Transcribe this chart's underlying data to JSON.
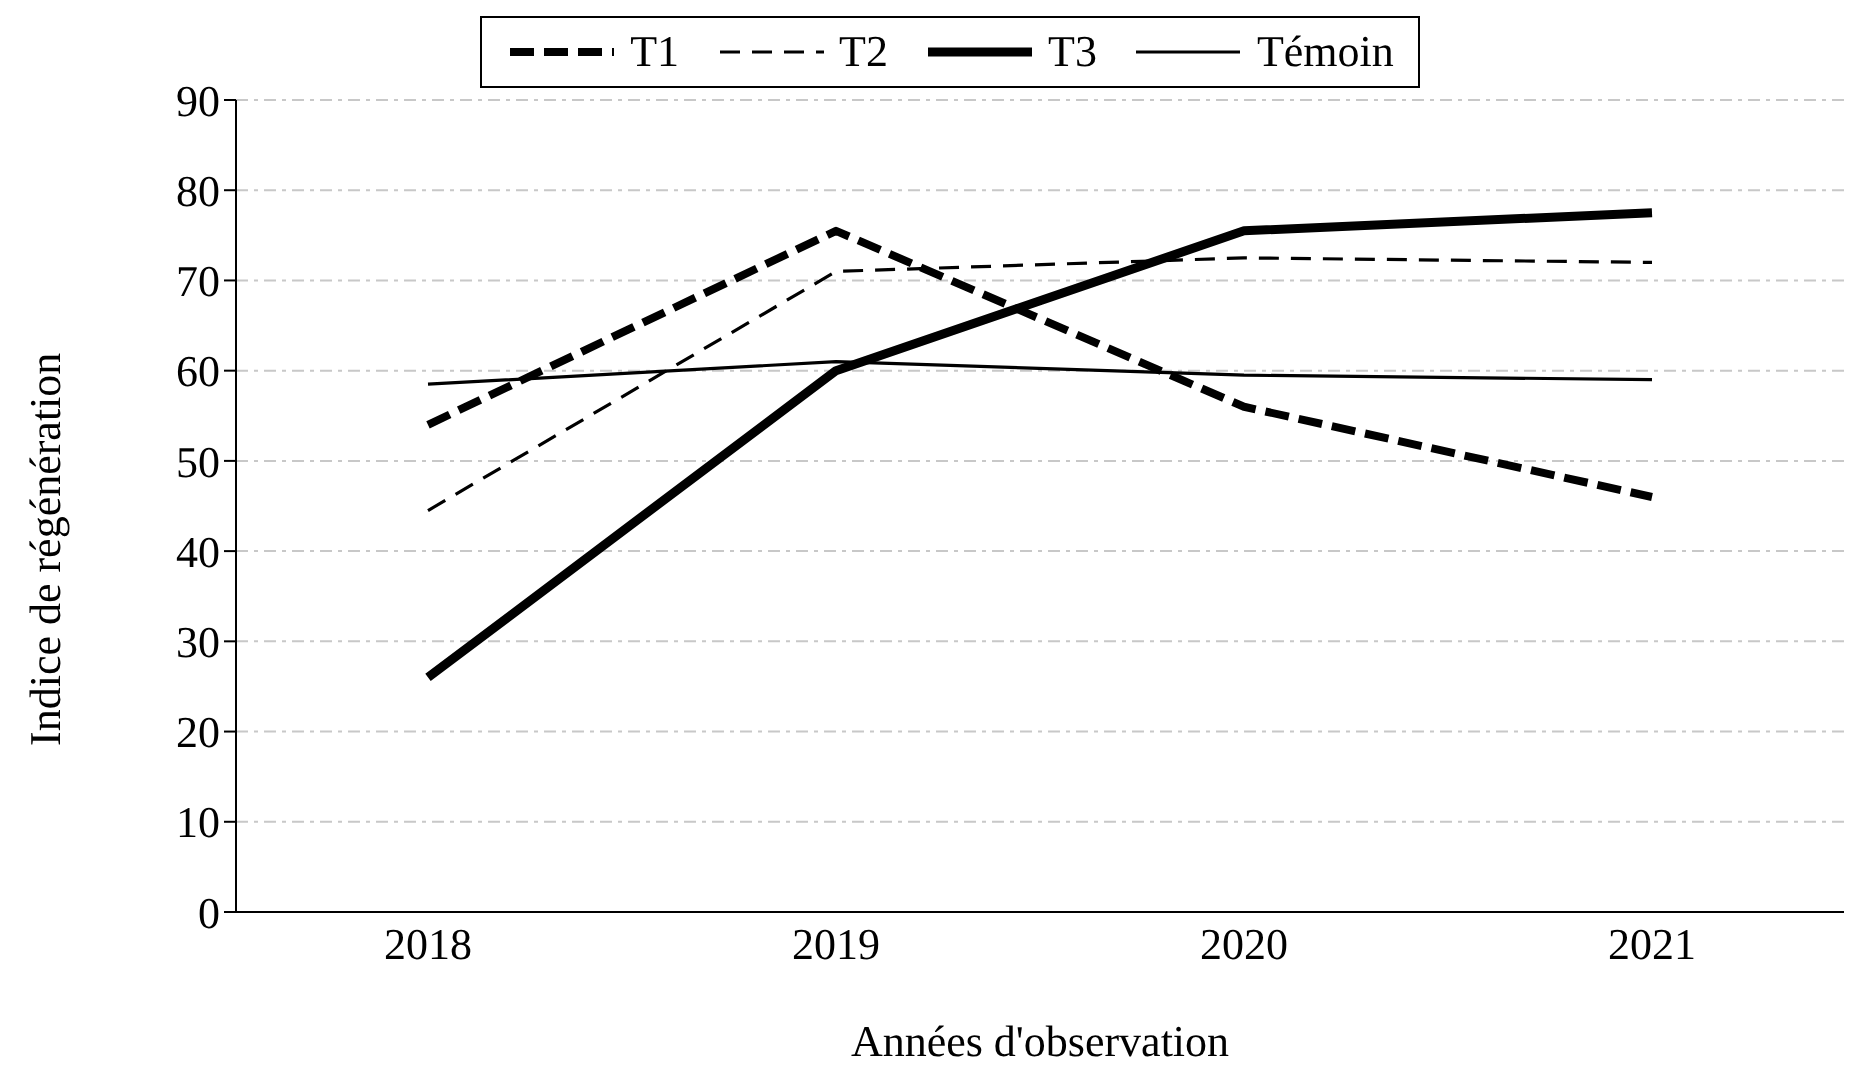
{
  "chart_data": {
    "type": "line",
    "xlabel": "Années d'observation",
    "ylabel": "Indice de régénération",
    "categories": [
      "2018",
      "2019",
      "2020",
      "2021"
    ],
    "series": [
      {
        "name": "T1",
        "color": "#000000",
        "line_style": "dashed",
        "values": [
          54,
          75.5,
          56,
          46
        ]
      },
      {
        "name": "T2",
        "color": "#000000",
        "line_style": "dashed",
        "values": [
          44.5,
          71,
          72.5,
          72
        ]
      },
      {
        "name": "T3",
        "color": "#000000",
        "line_style": "solid",
        "values": [
          26,
          60,
          75.5,
          77.5
        ]
      },
      {
        "name": "Témoin",
        "color": "#000000",
        "line_style": "solid",
        "values": [
          58.5,
          61,
          59.5,
          59
        ]
      }
    ],
    "ylim": [
      0,
      90
    ],
    "yticks": [
      0,
      10,
      20,
      30,
      40,
      50,
      60,
      70,
      80,
      90
    ],
    "grid": "y",
    "legend": "top",
    "marker": "none"
  }
}
